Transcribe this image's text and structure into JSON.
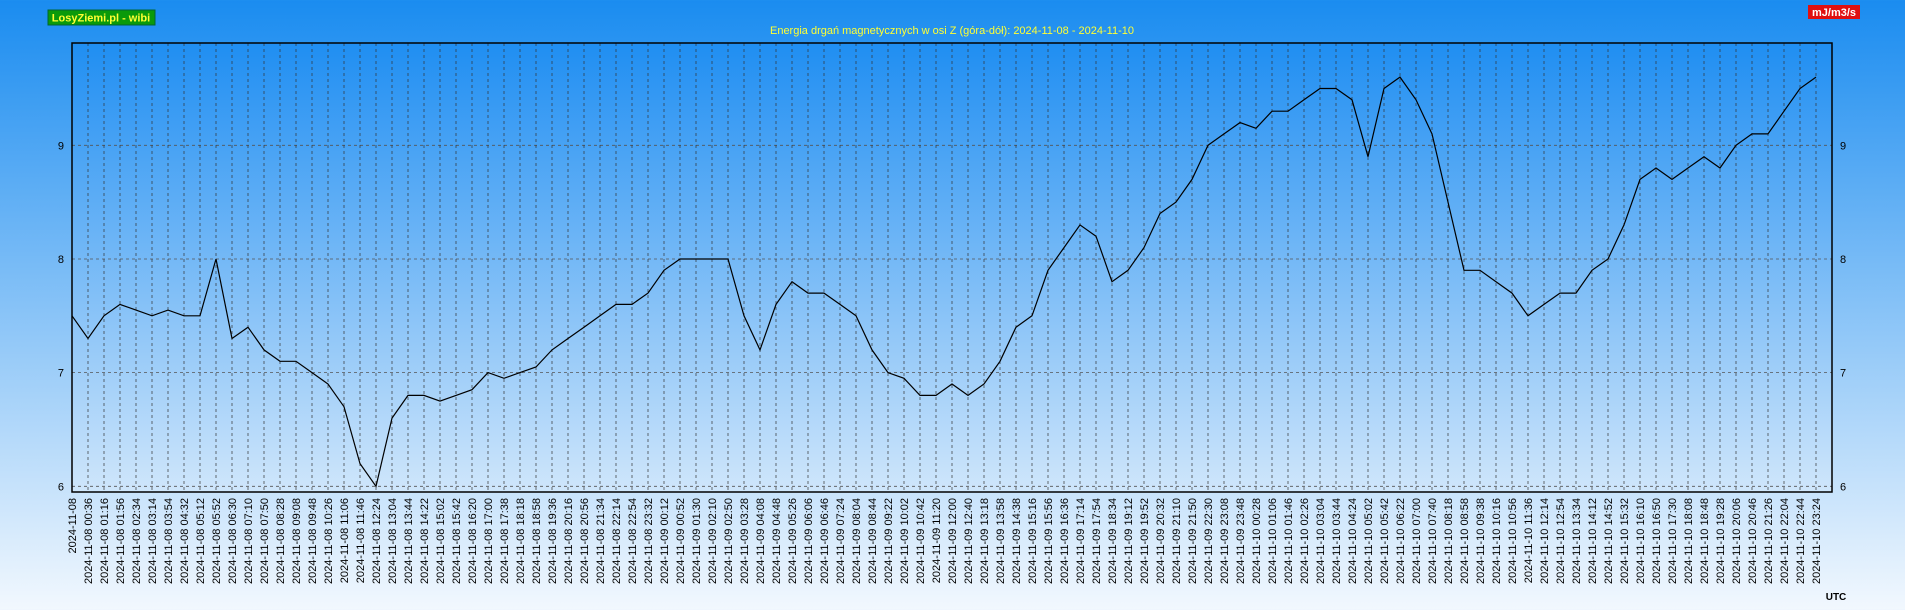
{
  "chart_data": {
    "type": "line",
    "title": "Energia drgań magnetycznych w osi Z (góra-dół): 2024-11-08 - 2024-11-10",
    "source_label": "LosyZiemi.pl - wibi",
    "unit_label": "mJ/m3/s",
    "timezone_label": "UTC",
    "categories": [
      "2024-11-08",
      "2024-11-08 00:36",
      "2024-11-08 01:16",
      "2024-11-08 01:56",
      "2024-11-08 02:34",
      "2024-11-08 03:14",
      "2024-11-08 03:54",
      "2024-11-08 04:32",
      "2024-11-08 05:12",
      "2024-11-08 05:52",
      "2024-11-08 06:30",
      "2024-11-08 07:10",
      "2024-11-08 07:50",
      "2024-11-08 08:28",
      "2024-11-08 09:08",
      "2024-11-08 09:48",
      "2024-11-08 10:26",
      "2024-11-08 11:06",
      "2024-11-08 11:46",
      "2024-11-08 12:24",
      "2024-11-08 13:04",
      "2024-11-08 13:44",
      "2024-11-08 14:22",
      "2024-11-08 15:02",
      "2024-11-08 15:42",
      "2024-11-08 16:20",
      "2024-11-08 17:00",
      "2024-11-08 17:38",
      "2024-11-08 18:18",
      "2024-11-08 18:58",
      "2024-11-08 19:36",
      "2024-11-08 20:16",
      "2024-11-08 20:56",
      "2024-11-08 21:34",
      "2024-11-08 22:14",
      "2024-11-08 22:54",
      "2024-11-08 23:32",
      "2024-11-09 00:12",
      "2024-11-09 00:52",
      "2024-11-09 01:30",
      "2024-11-09 02:10",
      "2024-11-09 02:50",
      "2024-11-09 03:28",
      "2024-11-09 04:08",
      "2024-11-09 04:48",
      "2024-11-09 05:26",
      "2024-11-09 06:06",
      "2024-11-09 06:46",
      "2024-11-09 07:24",
      "2024-11-09 08:04",
      "2024-11-09 08:44",
      "2024-11-09 09:22",
      "2024-11-09 10:02",
      "2024-11-09 10:42",
      "2024-11-09 11:20",
      "2024-11-09 12:00",
      "2024-11-09 12:40",
      "2024-11-09 13:18",
      "2024-11-09 13:58",
      "2024-11-09 14:38",
      "2024-11-09 15:16",
      "2024-11-09 15:56",
      "2024-11-09 16:36",
      "2024-11-09 17:14",
      "2024-11-09 17:54",
      "2024-11-09 18:34",
      "2024-11-09 19:12",
      "2024-11-09 19:52",
      "2024-11-09 20:32",
      "2024-11-09 21:10",
      "2024-11-09 21:50",
      "2024-11-09 22:30",
      "2024-11-09 23:08",
      "2024-11-09 23:48",
      "2024-11-10 00:28",
      "2024-11-10 01:06",
      "2024-11-10 01:46",
      "2024-11-10 02:26",
      "2024-11-10 03:04",
      "2024-11-10 03:44",
      "2024-11-10 04:24",
      "2024-11-10 05:02",
      "2024-11-10 05:42",
      "2024-11-10 06:22",
      "2024-11-10 07:00",
      "2024-11-10 07:40",
      "2024-11-10 08:18",
      "2024-11-10 08:58",
      "2024-11-10 09:38",
      "2024-11-10 10:16",
      "2024-11-10 10:56",
      "2024-11-10 11:36",
      "2024-11-10 12:14",
      "2024-11-10 12:54",
      "2024-11-10 13:34",
      "2024-11-10 14:12",
      "2024-11-10 14:52",
      "2024-11-10 15:32",
      "2024-11-10 16:10",
      "2024-11-10 16:50",
      "2024-11-10 17:30",
      "2024-11-10 18:08",
      "2024-11-10 18:48",
      "2024-11-10 19:28",
      "2024-11-10 20:06",
      "2024-11-10 20:46",
      "2024-11-10 21:26",
      "2024-11-10 22:04",
      "2024-11-10 22:44",
      "2024-11-10 23:24"
    ],
    "series": [
      {
        "name": "Z",
        "color": "#000000",
        "values": [
          7.5,
          7.3,
          7.5,
          7.6,
          7.55,
          7.5,
          7.55,
          7.5,
          7.5,
          8.0,
          7.3,
          7.4,
          7.2,
          7.1,
          7.1,
          7.0,
          6.9,
          6.7,
          6.2,
          6.0,
          6.6,
          6.8,
          6.8,
          6.75,
          6.8,
          6.85,
          7.0,
          6.95,
          7.0,
          7.05,
          7.2,
          7.3,
          7.4,
          7.5,
          7.6,
          7.6,
          7.7,
          7.9,
          8.0,
          8.0,
          8.0,
          8.0,
          7.5,
          7.2,
          7.6,
          7.8,
          7.7,
          7.7,
          7.6,
          7.5,
          7.2,
          7.0,
          6.95,
          6.8,
          6.8,
          6.9,
          6.8,
          6.9,
          7.1,
          7.4,
          7.5,
          7.9,
          8.1,
          8.3,
          8.2,
          7.8,
          7.9,
          8.1,
          8.4,
          8.5,
          8.7,
          9.0,
          9.1,
          9.2,
          9.15,
          9.3,
          9.3,
          9.4,
          9.5,
          9.5,
          9.4,
          8.9,
          9.5,
          9.6,
          9.4,
          9.1,
          8.5,
          7.9,
          7.9,
          7.8,
          7.7,
          7.5,
          7.6,
          7.7,
          7.7,
          7.9,
          8.0,
          8.3,
          8.7,
          8.8,
          8.7,
          8.8,
          8.9,
          8.8,
          9.0,
          9.1,
          9.1,
          9.3,
          9.5,
          9.6
        ]
      }
    ],
    "ylim": [
      5.95,
      9.9
    ],
    "yticks": [
      6,
      7,
      8,
      9
    ],
    "grid": true
  }
}
